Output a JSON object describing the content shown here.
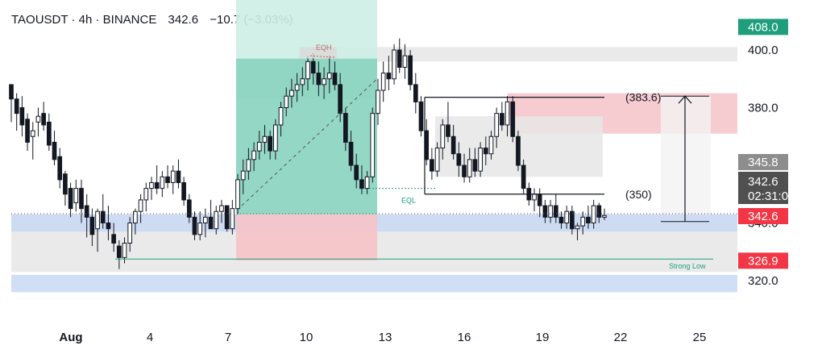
{
  "header": {
    "symbol": "TAOUSDT",
    "interval": "4h",
    "exchange": "BINANCE",
    "last": "342.6",
    "change": "−10.7 (−3.03%)",
    "sep": "·"
  },
  "colors": {
    "up": "#ffffff",
    "down": "#131722",
    "axis_text": "#131722",
    "green_badge": "#1e9e7d",
    "red_badge": "#f23645",
    "gray_badge": "#8d8d8d",
    "dark_badge": "#505050",
    "long_target_zone": "#cdeee6",
    "long_fill_zone": "#88d3bf",
    "loss_zone": "#f6c3c8",
    "blue_zone": "#c8d8f4",
    "gray_zone": "#e6e6e6"
  },
  "chart_data": {
    "type": "candlestick",
    "title": "TAOUSDT · 4h · BINANCE",
    "y_axis": {
      "range": [
        312,
        418
      ],
      "ticks": [
        "400.0",
        "380.0",
        "320.0"
      ],
      "position": "right"
    },
    "x_axis": {
      "tick_labels": [
        "Aug",
        "4",
        "7",
        "10",
        "13",
        "16",
        "19",
        "22",
        "25"
      ]
    },
    "price_labels": [
      {
        "value": 408.0,
        "text": "408.0",
        "style": "green"
      },
      {
        "value": 345.8,
        "text": "345.8",
        "style": "gray"
      },
      {
        "value": 342.6,
        "text": "342.6",
        "sub": "02:31:03",
        "style": "dark"
      },
      {
        "value": 342.6,
        "text": "342.6",
        "style": "red"
      },
      {
        "value": 326.9,
        "text": "326.9",
        "style": "red"
      }
    ],
    "partially_hidden_tick": "340.0",
    "candles_ohlc": [
      [
        388,
        388,
        375,
        383
      ],
      [
        383,
        385,
        372,
        378
      ],
      [
        380,
        384,
        370,
        374
      ],
      [
        376,
        378,
        365,
        368
      ],
      [
        370,
        375,
        362,
        372
      ],
      [
        375,
        380,
        370,
        377
      ],
      [
        378,
        382,
        372,
        374
      ],
      [
        375,
        378,
        365,
        367
      ],
      [
        368,
        372,
        360,
        362
      ],
      [
        363,
        366,
        352,
        355
      ],
      [
        357,
        358,
        346,
        350
      ],
      [
        352,
        354,
        342,
        345
      ],
      [
        347,
        355,
        344,
        352
      ],
      [
        352,
        355,
        340,
        345
      ],
      [
        346,
        350,
        335,
        342
      ],
      [
        342,
        345,
        332,
        336
      ],
      [
        338,
        345,
        330,
        344
      ],
      [
        344,
        350,
        338,
        340
      ],
      [
        340,
        346,
        334,
        338
      ],
      [
        336,
        340,
        330,
        333
      ],
      [
        332,
        334,
        324,
        328
      ],
      [
        328,
        335,
        326,
        333
      ],
      [
        333,
        342,
        330,
        340
      ],
      [
        340,
        345,
        336,
        344
      ],
      [
        344,
        350,
        340,
        348
      ],
      [
        348,
        354,
        344,
        352
      ],
      [
        352,
        356,
        348,
        354
      ],
      [
        354,
        360,
        350,
        352
      ],
      [
        352,
        358,
        349,
        356
      ],
      [
        356,
        360,
        352,
        354
      ],
      [
        354,
        360,
        350,
        358
      ],
      [
        358,
        362,
        352,
        354
      ],
      [
        354,
        356,
        346,
        348
      ],
      [
        348,
        350,
        340,
        342
      ],
      [
        342,
        344,
        334,
        336
      ],
      [
        336,
        344,
        334,
        340
      ],
      [
        340,
        345,
        335,
        342
      ],
      [
        342,
        348,
        338,
        338
      ],
      [
        338,
        346,
        336,
        344
      ],
      [
        344,
        348,
        340,
        346
      ],
      [
        346,
        345,
        337,
        338
      ],
      [
        338,
        348,
        336,
        345
      ],
      [
        345,
        357,
        343,
        355
      ],
      [
        355,
        362,
        350,
        358
      ],
      [
        358,
        366,
        355,
        362
      ],
      [
        362,
        368,
        358,
        365
      ],
      [
        365,
        372,
        362,
        368
      ],
      [
        368,
        374,
        364,
        370
      ],
      [
        370,
        372,
        362,
        365
      ],
      [
        365,
        376,
        362,
        374
      ],
      [
        374,
        382,
        370,
        380
      ],
      [
        380,
        387,
        377,
        384
      ],
      [
        384,
        390,
        380,
        386
      ],
      [
        386,
        392,
        382,
        388
      ],
      [
        388,
        394,
        384,
        390
      ],
      [
        390,
        398,
        386,
        396
      ],
      [
        396,
        399,
        388,
        392
      ],
      [
        392,
        396,
        384,
        388
      ],
      [
        388,
        394,
        383,
        390
      ],
      [
        390,
        398,
        385,
        392
      ],
      [
        392,
        396,
        386,
        388
      ],
      [
        388,
        392,
        375,
        378
      ],
      [
        378,
        380,
        365,
        368
      ],
      [
        368,
        372,
        358,
        360
      ],
      [
        360,
        364,
        352,
        355
      ],
      [
        355,
        360,
        350,
        352
      ],
      [
        352,
        358,
        350,
        356
      ],
      [
        356,
        380,
        354,
        378
      ],
      [
        378,
        390,
        374,
        386
      ],
      [
        386,
        396,
        382,
        392
      ],
      [
        392,
        398,
        386,
        390
      ],
      [
        390,
        402,
        388,
        400
      ],
      [
        400,
        404,
        392,
        394
      ],
      [
        394,
        402,
        390,
        398
      ],
      [
        398,
        400,
        386,
        388
      ],
      [
        388,
        392,
        378,
        382
      ],
      [
        382,
        384,
        370,
        372
      ],
      [
        372,
        376,
        360,
        362
      ],
      [
        362,
        366,
        355,
        358
      ],
      [
        358,
        368,
        356,
        366
      ],
      [
        366,
        376,
        362,
        374
      ],
      [
        374,
        382,
        368,
        370
      ],
      [
        370,
        374,
        362,
        364
      ],
      [
        364,
        368,
        356,
        360
      ],
      [
        360,
        364,
        354,
        356
      ],
      [
        356,
        366,
        354,
        362
      ],
      [
        362,
        366,
        356,
        358
      ],
      [
        358,
        368,
        356,
        366
      ],
      [
        366,
        370,
        360,
        364
      ],
      [
        364,
        372,
        362,
        370
      ],
      [
        370,
        380,
        366,
        378
      ],
      [
        378,
        382,
        372,
        374
      ],
      [
        374,
        384,
        370,
        382
      ],
      [
        382,
        384,
        368,
        370
      ],
      [
        370,
        372,
        358,
        360
      ],
      [
        360,
        362,
        350,
        352
      ],
      [
        352,
        354,
        346,
        348
      ],
      [
        348,
        352,
        344,
        350
      ],
      [
        350,
        352,
        342,
        346
      ],
      [
        346,
        348,
        340,
        342
      ],
      [
        342,
        348,
        340,
        346
      ],
      [
        346,
        350,
        340,
        342
      ],
      [
        342,
        344,
        338,
        340
      ],
      [
        340,
        346,
        338,
        344
      ],
      [
        344,
        346,
        336,
        338
      ],
      [
        338,
        340,
        334,
        339
      ],
      [
        339,
        344,
        336,
        342
      ],
      [
        342,
        346,
        338,
        340
      ],
      [
        340,
        348,
        338,
        346
      ],
      [
        346,
        347,
        340,
        342
      ],
      [
        342,
        345,
        341,
        342.6
      ]
    ],
    "annotations": [
      {
        "text": "EQH",
        "kind": "label"
      },
      {
        "text": "EQL",
        "kind": "label"
      },
      {
        "text": "(383.6)",
        "kind": "level"
      },
      {
        "text": "(350)",
        "kind": "level"
      },
      {
        "text": "Strong Low",
        "kind": "label"
      }
    ],
    "zones": [
      {
        "name": "long-target",
        "from": 383,
        "to": 418,
        "color": "#cdeee6"
      },
      {
        "name": "long-fill",
        "from": 343,
        "to": 397,
        "color": "#88d3bf"
      },
      {
        "name": "long-stop",
        "from": 327,
        "to": 343,
        "color": "#f6c3c8"
      },
      {
        "name": "demand-blue",
        "from": 337,
        "to": 343,
        "color": "#c8d8f4"
      },
      {
        "name": "demand-gray",
        "from": 323,
        "to": 343,
        "color": "#e6e6e6"
      },
      {
        "name": "support-blue",
        "from": 316,
        "to": 322,
        "color": "#c8d8f4"
      },
      {
        "name": "supply-top",
        "from": 396,
        "to": 401,
        "color": "#e6e6e6"
      },
      {
        "name": "supply-red",
        "from": 371,
        "to": 385,
        "color": "#f6c3c8"
      },
      {
        "name": "mid-gray",
        "from": 356,
        "to": 377,
        "color": "#e6e6e6"
      }
    ],
    "grid": false,
    "legend": "none"
  }
}
